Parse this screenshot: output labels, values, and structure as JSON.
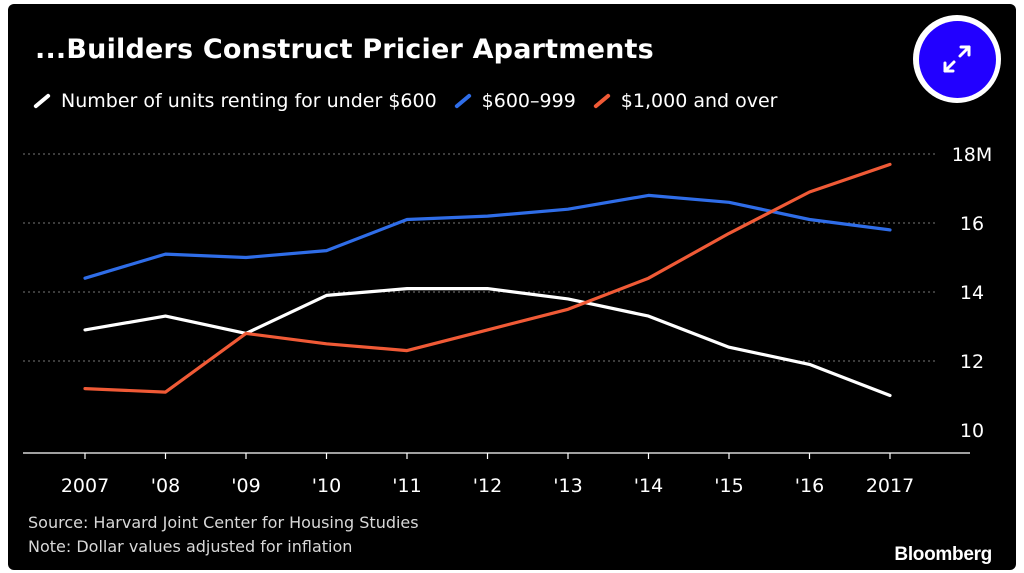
{
  "colors": {
    "background": "#000000",
    "text": "#ffffff",
    "grid": "#777777",
    "button": "#2200ff",
    "series_white": "#ffffff",
    "series_blue": "#2f6de8",
    "series_orange": "#f05a36"
  },
  "expand_button": {
    "icon": "expand-arrows-icon"
  },
  "footer": {
    "source": "Source: Harvard Joint Center for Housing Studies",
    "note": "Note: Dollar values adjusted for inflation",
    "brand": "Bloomberg"
  },
  "chart_data": {
    "type": "line",
    "title": "...Builders Construct Pricier Apartments",
    "categories": [
      "2007",
      "'08",
      "'09",
      "'10",
      "'11",
      "'12",
      "'13",
      "'14",
      "'15",
      "'16",
      "2017"
    ],
    "y_tick_labels": [
      "10",
      "12",
      "14",
      "16",
      "18M"
    ],
    "y_ticks": [
      10,
      12,
      14,
      16,
      18
    ],
    "ylim": [
      9.4,
      18
    ],
    "grid": true,
    "legend_position": "top-left",
    "series": [
      {
        "name": "Number of units renting for under $600",
        "color": "#ffffff",
        "values": [
          12.9,
          13.3,
          12.8,
          13.9,
          14.1,
          14.1,
          13.8,
          13.3,
          12.4,
          11.9,
          11.0
        ]
      },
      {
        "name": "$600–999",
        "color": "#2f6de8",
        "values": [
          14.4,
          15.1,
          15.0,
          15.2,
          16.1,
          16.2,
          16.4,
          16.8,
          16.6,
          16.1,
          15.8
        ]
      },
      {
        "name": "$1,000 and over",
        "color": "#f05a36",
        "values": [
          11.2,
          11.1,
          12.8,
          12.5,
          12.3,
          12.9,
          13.5,
          14.4,
          15.7,
          16.9,
          17.7
        ]
      }
    ]
  }
}
